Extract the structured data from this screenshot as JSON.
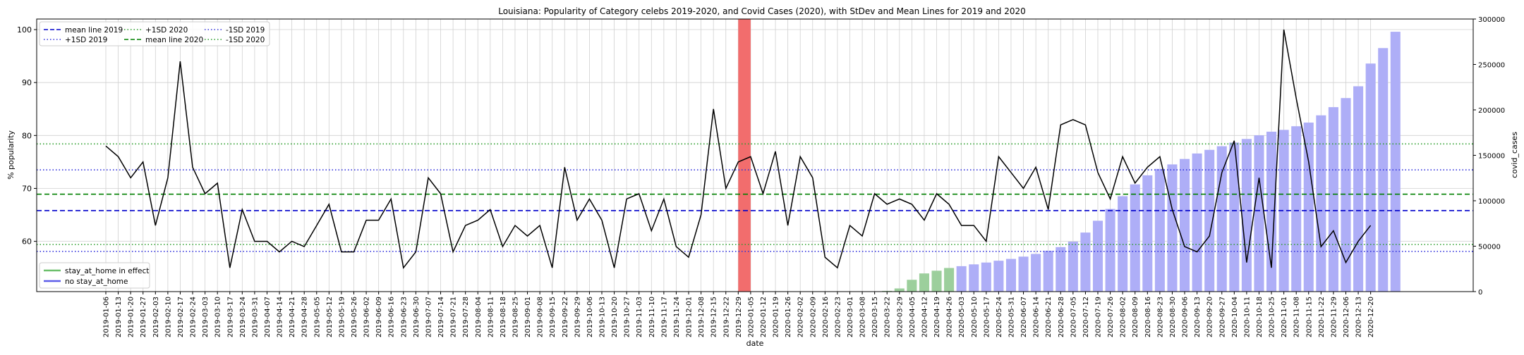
{
  "chart_data": {
    "type": "line",
    "title": "Louisiana: Popularity of Category celebs 2019-2020, and Covid Cases (2020), with StDev and Mean Lines for 2019 and 2020",
    "xlabel": "date",
    "ylabel": "% popularity",
    "y2label": "covid_cases",
    "ylim": [
      50.5,
      102
    ],
    "y2lim": [
      0,
      300000
    ],
    "yticks": [
      60,
      70,
      80,
      90,
      100
    ],
    "y2ticks": [
      0,
      50000,
      100000,
      150000,
      200000,
      250000,
      300000
    ],
    "grid": true,
    "highlight_dates": [
      "2019-12-29",
      "2020-01-05"
    ],
    "colors": {
      "line": "#000000",
      "mean2019": "#0000cc",
      "mean2020": "#008000",
      "sd2019": "#3333dd",
      "sd2020": "#2a9d2a",
      "bar_stay": "#9ccf9c",
      "bar_nostay": "#aeaef7",
      "highlight": "#f26d6d"
    },
    "hlines": [
      {
        "name": "mean line 2019",
        "value": 65.8,
        "style": "dashed",
        "color": "#0000cc"
      },
      {
        "name": "mean line 2020",
        "value": 68.9,
        "style": "dashed",
        "color": "#008000"
      },
      {
        "name": "+1SD 2019",
        "value": 73.5,
        "style": "dotted",
        "color": "#3333dd"
      },
      {
        "name": "-1SD 2019",
        "value": 58.1,
        "style": "dotted",
        "color": "#3333dd"
      },
      {
        "name": "+1SD 2020",
        "value": 78.4,
        "style": "dotted",
        "color": "#2a9d2a"
      },
      {
        "name": "-1SD 2020",
        "value": 59.4,
        "style": "dotted",
        "color": "#2a9d2a"
      }
    ],
    "legend_top": [
      {
        "label": "mean line 2019",
        "color": "#0000cc",
        "style": "dashed"
      },
      {
        "label": "+1SD 2019",
        "color": "#3333dd",
        "style": "dotted"
      },
      {
        "label": "+1SD 2020",
        "color": "#2a9d2a",
        "style": "dotted"
      },
      {
        "label": "mean line 2020",
        "color": "#008000",
        "style": "dashed"
      },
      {
        "label": "-1SD 2019",
        "color": "#3333dd",
        "style": "dotted"
      },
      {
        "label": "-1SD 2020",
        "color": "#2a9d2a",
        "style": "dotted"
      }
    ],
    "legend_bottom": [
      {
        "label": "stay_at_home in effect",
        "color": "#6cbf6c"
      },
      {
        "label": "no stay_at_home",
        "color": "#5c5ce8"
      }
    ],
    "dates": [
      "2019-01-06",
      "2019-01-13",
      "2019-01-20",
      "2019-01-27",
      "2019-02-03",
      "2019-02-10",
      "2019-02-17",
      "2019-02-24",
      "2019-03-03",
      "2019-03-10",
      "2019-03-17",
      "2019-03-24",
      "2019-03-31",
      "2019-04-07",
      "2019-04-14",
      "2019-04-21",
      "2019-04-28",
      "2019-05-05",
      "2019-05-12",
      "2019-05-19",
      "2019-05-26",
      "2019-06-02",
      "2019-06-09",
      "2019-06-16",
      "2019-06-23",
      "2019-06-30",
      "2019-07-07",
      "2019-07-14",
      "2019-07-21",
      "2019-07-28",
      "2019-08-04",
      "2019-08-11",
      "2019-08-18",
      "2019-08-25",
      "2019-09-01",
      "2019-09-08",
      "2019-09-15",
      "2019-09-22",
      "2019-09-29",
      "2019-10-06",
      "2019-10-13",
      "2019-10-20",
      "2019-10-27",
      "2019-11-03",
      "2019-11-10",
      "2019-11-17",
      "2019-11-24",
      "2019-12-01",
      "2019-12-08",
      "2019-12-15",
      "2019-12-22",
      "2019-12-29",
      "2020-01-05",
      "2020-01-12",
      "2020-01-19",
      "2020-01-26",
      "2020-02-02",
      "2020-02-09",
      "2020-02-16",
      "2020-02-23",
      "2020-03-01",
      "2020-03-08",
      "2020-03-15",
      "2020-03-22",
      "2020-03-29",
      "2020-04-05",
      "2020-04-12",
      "2020-04-19",
      "2020-04-26",
      "2020-05-03",
      "2020-05-10",
      "2020-05-17",
      "2020-05-24",
      "2020-05-31",
      "2020-06-07",
      "2020-06-14",
      "2020-06-21",
      "2020-06-28",
      "2020-07-05",
      "2020-07-12",
      "2020-07-19",
      "2020-07-26",
      "2020-08-02",
      "2020-08-09",
      "2020-08-16",
      "2020-08-23",
      "2020-08-30",
      "2020-09-06",
      "2020-09-13",
      "2020-09-20",
      "2020-09-27",
      "2020-10-04",
      "2020-10-11",
      "2020-10-18",
      "2020-10-25",
      "2020-11-01",
      "2020-11-08",
      "2020-11-15",
      "2020-11-22",
      "2020-11-29",
      "2020-12-06",
      "2020-12-13",
      "2020-12-20"
    ],
    "popularity": [
      78,
      76,
      72,
      75,
      63,
      72,
      94,
      74,
      69,
      71,
      55,
      66,
      60,
      60,
      58,
      60,
      59,
      63,
      67,
      58,
      58,
      64,
      64,
      68,
      55,
      58,
      72,
      69,
      58,
      63,
      64,
      66,
      59,
      63,
      61,
      63,
      55,
      74,
      64,
      68,
      64,
      55,
      68,
      69,
      62,
      68,
      59,
      57,
      65,
      85,
      70,
      75,
      76,
      69,
      77,
      63,
      76,
      72,
      57,
      55,
      63,
      61,
      69,
      67,
      68,
      67,
      64,
      69,
      67,
      63,
      63,
      60,
      76,
      73,
      70,
      74,
      66,
      82,
      83,
      82,
      73,
      68,
      76,
      71,
      74,
      76,
      66,
      59,
      58,
      61,
      73,
      79,
      56,
      72,
      55,
      100,
      87,
      75,
      59,
      62,
      56,
      60,
      63
    ],
    "covid_cases": [
      null,
      null,
      null,
      null,
      null,
      null,
      null,
      null,
      null,
      null,
      null,
      null,
      null,
      null,
      null,
      null,
      null,
      null,
      null,
      null,
      null,
      null,
      null,
      null,
      null,
      null,
      null,
      null,
      null,
      null,
      null,
      null,
      null,
      null,
      null,
      null,
      null,
      null,
      null,
      null,
      null,
      null,
      null,
      null,
      null,
      null,
      null,
      null,
      null,
      null,
      null,
      null,
      null,
      null,
      null,
      null,
      null,
      null,
      null,
      null,
      null,
      null,
      null,
      800,
      3500,
      13000,
      20000,
      23000,
      26000,
      28000,
      30000,
      32000,
      34000,
      36000,
      38500,
      41500,
      45000,
      49000,
      55000,
      65000,
      78000,
      91000,
      105000,
      118000,
      128000,
      135000,
      140000,
      146000,
      152000,
      156000,
      160000,
      164000,
      168000,
      172000,
      176000,
      178000,
      182000,
      186000,
      194000,
      203000,
      213000,
      226000,
      251000,
      268000,
      286000
    ],
    "stay_at_home_dates": [
      "2020-03-22",
      "2020-03-29",
      "2020-04-05",
      "2020-04-12",
      "2020-04-19",
      "2020-04-26"
    ]
  }
}
